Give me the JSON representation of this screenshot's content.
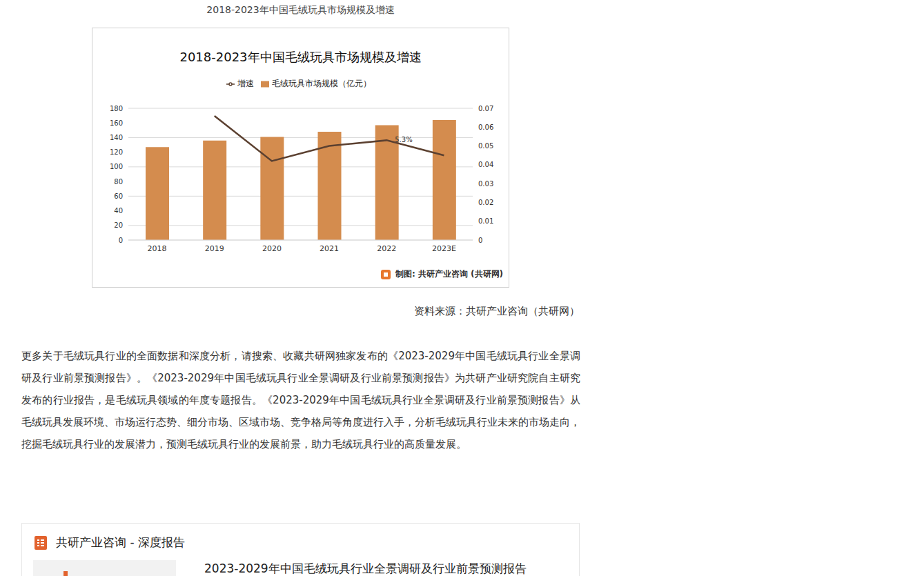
{
  "page": {
    "caption": "2018-2023年中国毛绒玩具市场规模及增速",
    "source": "资料来源：共研产业咨询（共研网）",
    "paragraph": "更多关于毛绒玩具行业的全面数据和深度分析，请搜索、收藏共研网独家发布的《2023-2029年中国毛绒玩具行业全景调研及行业前景预测报告》。《2023-2029年中国毛绒玩具行业全景调研及行业前景预测报告》为共研产业研究院自主研究发布的行业报告，是毛绒玩具领域的年度专题报告。《2023-2029年中国毛绒玩具行业全景调研及行业前景预测报告》从毛绒玩具发展环境、市场运行态势、细分市场、区域市场、竞争格局等角度进行入手，分析毛绒玩具行业未来的市场走向，挖掘毛绒玩具行业的发展潜力，预测毛绒玩具行业的发展前景，助力毛绒玩具行业的高质量发展。",
    "report_header": "共研产业咨询 - 深度报告",
    "report_title": "2023-2029年中国毛绒玩具行业全景调研及行业前景预测报告"
  },
  "chart_data": {
    "type": "bar",
    "title": "2018-2023年中国毛绒玩具市场规模及增速",
    "credit": "制图: 共研产业咨询 (共研网)",
    "categories": [
      "2018",
      "2019",
      "2020",
      "2021",
      "2022",
      "2023E"
    ],
    "series": [
      {
        "name": "毛绒玩具市场规模（亿元）",
        "type": "bar",
        "color": "#d48c4e",
        "values": [
          127,
          136,
          141,
          148,
          157,
          164
        ]
      },
      {
        "name": "增速",
        "type": "line",
        "axis": "y2",
        "color": "#5b4030",
        "marker": "none",
        "values": [
          null,
          0.066,
          0.042,
          0.05,
          0.053,
          0.045
        ],
        "value_labels": [
          null,
          null,
          null,
          null,
          "5.3%",
          null
        ]
      }
    ],
    "ylim": [
      0,
      180
    ],
    "yticks": [
      0,
      20,
      40,
      60,
      80,
      100,
      120,
      140,
      160,
      180
    ],
    "y2lim": [
      0,
      0.07
    ],
    "y2ticks": [
      0,
      0.01,
      0.02,
      0.03,
      0.04,
      0.05,
      0.06,
      0.07
    ],
    "grid": true,
    "legend": "top"
  }
}
